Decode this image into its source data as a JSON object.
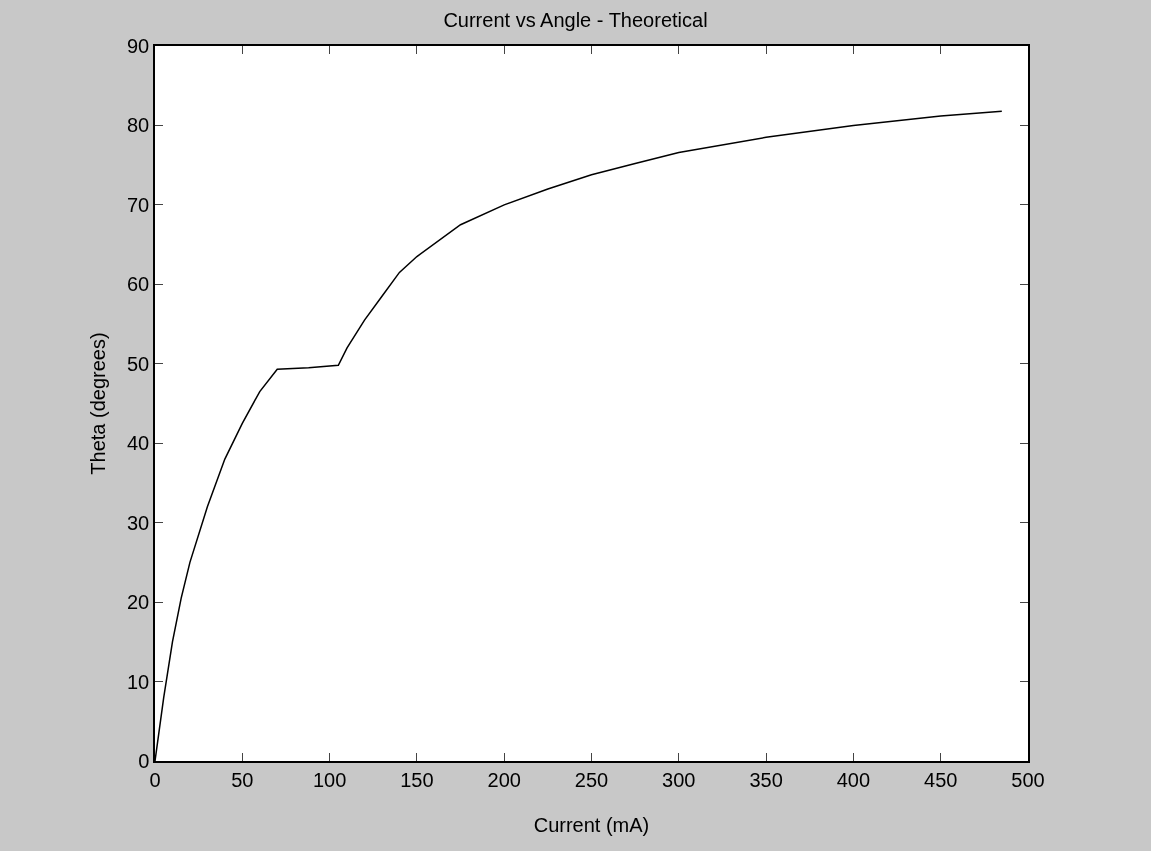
{
  "chart_data": {
    "type": "line",
    "title": "Current vs Angle - Theoretical",
    "xlabel": "Current (mA)",
    "ylabel": "Theta (degrees)",
    "x": [
      0,
      5,
      10,
      15,
      20,
      30,
      40,
      50,
      60,
      70,
      88,
      105,
      110,
      120,
      130,
      140,
      150,
      175,
      200,
      225,
      250,
      275,
      300,
      350,
      400,
      450,
      485
    ],
    "series": [
      {
        "color": "#000000",
        "values": [
          0,
          8,
          15,
          20.5,
          25,
          32,
          38,
          42.5,
          46.5,
          49.3,
          49.5,
          49.8,
          52,
          55.5,
          58.5,
          61.5,
          63.5,
          67.5,
          70,
          72,
          73.8,
          75.2,
          76.6,
          78.5,
          80,
          81.2,
          81.8
        ]
      }
    ],
    "xlim": [
      0,
      500
    ],
    "xticks": [
      0,
      50,
      100,
      150,
      200,
      250,
      300,
      350,
      400,
      450,
      500
    ],
    "ylim": [
      0,
      90
    ],
    "yticks": [
      0,
      10,
      20,
      30,
      40,
      50,
      60,
      70,
      80,
      90
    ],
    "grid": false,
    "marker": "none",
    "line_style": "solid"
  }
}
